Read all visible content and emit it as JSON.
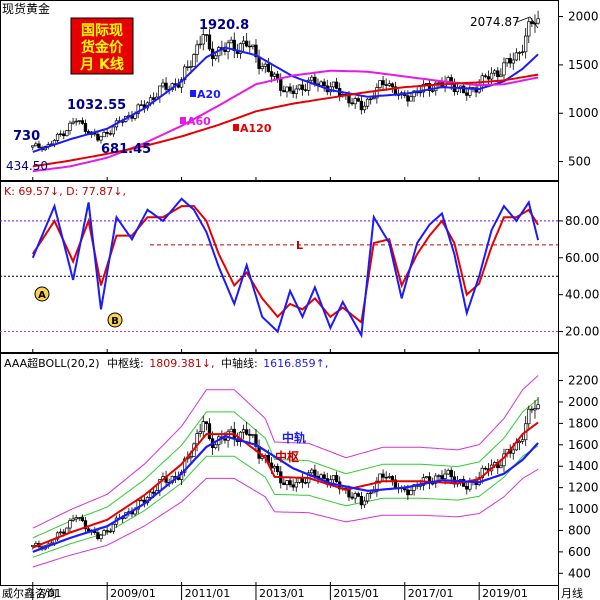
{
  "app": {
    "title": "现货黄金",
    "badge_lines": [
      "国际现",
      "货金价",
      "月  K线"
    ],
    "watermark": "威尔鑫咨询",
    "period_label": "月线"
  },
  "colors": {
    "price_bull": "#000000",
    "ma20": "#1a1aff",
    "ma60": "#e619e6",
    "ma120": "#e60000",
    "k_line": "#1a1aff",
    "d_line": "#e60000",
    "boll_mid": "#e60000",
    "boll_axis": "#1a1aff",
    "boll_inner": "#33cc33",
    "boll_outer": "#d633d6",
    "badge_bg": "#e60000",
    "badge_text": "#ffff00",
    "grid_line": "#7f00ff"
  },
  "chart_data": [
    {
      "type": "candlestick",
      "title": "现货黄金",
      "yticks": [
        500,
        1000,
        1500,
        2000
      ],
      "ylim": [
        330,
        2130
      ],
      "annotations": {
        "high_2011": "1920.8",
        "high_2020": "2074.87",
        "low_start": "434.50",
        "mark_730": "730",
        "mark_1032": "1032.55",
        "mark_681": "681.45"
      },
      "ma_labels": {
        "ma20": "A20",
        "ma60": "A60",
        "ma120": "A120"
      },
      "x_dates": [
        "2007/01",
        "2009/01",
        "2011/01",
        "2013/01",
        "2015/01",
        "2017/01",
        "2019/01"
      ],
      "series": [
        {
          "name": "A20",
          "dates": [
            "2007-01",
            "2008-01",
            "2009-01",
            "2010-01",
            "2011-01",
            "2011-09",
            "2012-03",
            "2013-01",
            "2014-01",
            "2015-01",
            "2016-01",
            "2017-01",
            "2018-01",
            "2019-01",
            "2019-09",
            "2020-03",
            "2020-08"
          ],
          "values": [
            600,
            730,
            840,
            1050,
            1330,
            1580,
            1680,
            1600,
            1380,
            1240,
            1170,
            1200,
            1270,
            1250,
            1330,
            1460,
            1610
          ]
        },
        {
          "name": "A60",
          "dates": [
            "2007-01",
            "2008-01",
            "2009-01",
            "2010-01",
            "2011-01",
            "2012-01",
            "2013-01",
            "2014-01",
            "2015-01",
            "2016-01",
            "2017-01",
            "2018-01",
            "2019-01",
            "2019-09",
            "2020-08"
          ],
          "values": [
            400,
            450,
            540,
            690,
            870,
            1080,
            1300,
            1390,
            1440,
            1430,
            1380,
            1330,
            1290,
            1300,
            1370
          ]
        },
        {
          "name": "A120",
          "dates": [
            "2007-01",
            "2008-01",
            "2009-01",
            "2010-01",
            "2011-01",
            "2012-01",
            "2013-01",
            "2014-01",
            "2015-01",
            "2016-01",
            "2017-01",
            "2018-01",
            "2019-01",
            "2019-09",
            "2020-08"
          ],
          "values": [
            450,
            510,
            580,
            660,
            760,
            880,
            1020,
            1100,
            1160,
            1220,
            1270,
            1300,
            1320,
            1340,
            1400
          ]
        }
      ],
      "price_close": {
        "dates": [
          "2007-01",
          "2007-06",
          "2008-03",
          "2008-10",
          "2009-06",
          "2010-01",
          "2010-06",
          "2011-01",
          "2011-08",
          "2011-10",
          "2012-03",
          "2012-10",
          "2013-04",
          "2013-12",
          "2014-06",
          "2015-01",
          "2015-11",
          "2016-07",
          "2016-12",
          "2017-09",
          "2018-04",
          "2018-09",
          "2019-01",
          "2019-06",
          "2019-09",
          "2020-01",
          "2020-07",
          "2020-08"
        ],
        "values": [
          650,
          660,
          930,
          730,
          930,
          1080,
          1240,
          1330,
          1830,
          1620,
          1670,
          1720,
          1460,
          1200,
          1320,
          1280,
          1060,
          1340,
          1150,
          1280,
          1320,
          1190,
          1320,
          1410,
          1480,
          1590,
          1980,
          1960
        ]
      }
    },
    {
      "type": "line",
      "title": "K: 69.57↓, D: 77.87↓,",
      "ylim": [
        10,
        100
      ],
      "yticks": [
        20.0,
        40.0,
        60.0,
        80.0
      ],
      "reference_lines": [
        80,
        67,
        50,
        20
      ],
      "reference_label": "L",
      "markers": [
        "A",
        "B"
      ],
      "series": [
        {
          "name": "K",
          "dates": [
            "2007-01",
            "2007-08",
            "2008-02",
            "2008-07",
            "2008-11",
            "2009-04",
            "2009-09",
            "2010-02",
            "2010-07",
            "2011-01",
            "2011-05",
            "2011-09",
            "2012-01",
            "2012-06",
            "2012-10",
            "2013-03",
            "2013-08",
            "2013-12",
            "2014-04",
            "2014-08",
            "2015-01",
            "2015-05",
            "2015-11",
            "2016-03",
            "2016-08",
            "2016-12",
            "2017-05",
            "2017-09",
            "2018-01",
            "2018-05",
            "2018-09",
            "2019-01",
            "2019-05",
            "2019-09",
            "2020-01",
            "2020-05",
            "2020-08"
          ],
          "values": [
            60,
            88,
            48,
            90,
            32,
            82,
            70,
            86,
            80,
            92,
            86,
            74,
            55,
            35,
            56,
            28,
            20,
            42,
            28,
            44,
            22,
            36,
            18,
            82,
            68,
            38,
            68,
            78,
            84,
            62,
            30,
            50,
            75,
            88,
            80,
            90,
            69.57
          ]
        },
        {
          "name": "D",
          "dates": [
            "2007-01",
            "2007-08",
            "2008-02",
            "2008-07",
            "2008-11",
            "2009-04",
            "2009-09",
            "2010-02",
            "2010-07",
            "2011-01",
            "2011-05",
            "2011-09",
            "2012-01",
            "2012-06",
            "2012-10",
            "2013-03",
            "2013-08",
            "2013-12",
            "2014-04",
            "2014-08",
            "2015-01",
            "2015-05",
            "2015-11",
            "2016-03",
            "2016-08",
            "2016-12",
            "2017-05",
            "2017-09",
            "2018-01",
            "2018-05",
            "2018-09",
            "2019-01",
            "2019-05",
            "2019-09",
            "2020-01",
            "2020-05",
            "2020-08"
          ],
          "values": [
            62,
            80,
            58,
            80,
            45,
            72,
            72,
            82,
            82,
            88,
            88,
            80,
            62,
            45,
            52,
            38,
            28,
            35,
            32,
            38,
            28,
            33,
            25,
            68,
            70,
            45,
            62,
            72,
            80,
            68,
            40,
            46,
            66,
            82,
            82,
            86,
            77.87
          ]
        }
      ]
    },
    {
      "type": "line",
      "title": "AAA超BOLL(20,2)",
      "mid_label": "中枢线:",
      "mid_value": "1809.381↓,",
      "axis_label": "中轴线:",
      "axis_value": "1616.859↑,",
      "annot_axis": "中轨",
      "annot_mid": "中枢",
      "ylim": [
        300,
        2280
      ],
      "yticks": [
        400,
        600,
        800,
        1000,
        1200,
        1400,
        1600,
        1800,
        2000,
        2200
      ],
      "series": [
        {
          "name": "中轴",
          "dates": [
            "2007-01",
            "2008-01",
            "2009-01",
            "2010-01",
            "2011-01",
            "2011-09",
            "2012-03",
            "2013-01",
            "2014-01",
            "2015-01",
            "2016-01",
            "2017-01",
            "2018-01",
            "2019-01",
            "2019-09",
            "2020-03",
            "2020-08"
          ],
          "values": [
            600,
            730,
            840,
            1050,
            1330,
            1580,
            1680,
            1600,
            1380,
            1240,
            1170,
            1200,
            1270,
            1250,
            1330,
            1460,
            1617
          ]
        },
        {
          "name": "中枢",
          "dates": [
            "2007-01",
            "2008-01",
            "2009-01",
            "2010-01",
            "2011-01",
            "2011-09",
            "2012-06",
            "2013-04",
            "2013-07",
            "2014-06",
            "2015-06",
            "2016-06",
            "2017-06",
            "2018-06",
            "2019-01",
            "2019-09",
            "2020-03",
            "2020-08"
          ],
          "values": [
            640,
            780,
            900,
            1130,
            1420,
            1700,
            1700,
            1480,
            1300,
            1290,
            1180,
            1260,
            1260,
            1240,
            1280,
            1480,
            1700,
            1809
          ]
        }
      ]
    }
  ]
}
